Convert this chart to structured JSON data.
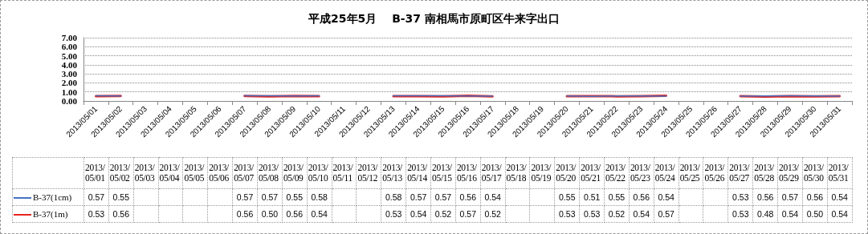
{
  "chart_data": {
    "type": "line",
    "title": "平成25年5月　 B-37 南相馬市原町区牛来字出口",
    "categories": [
      "2013/05/01",
      "2013/05/02",
      "2013/05/03",
      "2013/05/04",
      "2013/05/05",
      "2013/05/06",
      "2013/05/07",
      "2013/05/08",
      "2013/05/09",
      "2013/05/10",
      "2013/05/11",
      "2013/05/12",
      "2013/05/13",
      "2013/05/14",
      "2013/05/15",
      "2013/05/16",
      "2013/05/17",
      "2013/05/18",
      "2013/05/19",
      "2013/05/20",
      "2013/05/21",
      "2013/05/22",
      "2013/05/23",
      "2013/05/24",
      "2013/05/25",
      "2013/05/26",
      "2013/05/27",
      "2013/05/28",
      "2013/05/29",
      "2013/05/30",
      "2013/05/31"
    ],
    "series": [
      {
        "name": "B-37(1cm)",
        "color": "#4472c4",
        "values": [
          0.57,
          0.55,
          null,
          null,
          null,
          null,
          0.57,
          0.57,
          0.55,
          0.58,
          null,
          null,
          0.58,
          0.57,
          0.57,
          0.56,
          0.54,
          null,
          null,
          0.55,
          0.51,
          0.55,
          0.56,
          0.54,
          null,
          null,
          0.53,
          0.56,
          0.57,
          0.56,
          0.54
        ],
        "value_labels": [
          "0.57",
          "0.55",
          null,
          null,
          null,
          null,
          "0.57",
          "0.57",
          "0.55",
          "0.58",
          null,
          null,
          "0.58",
          "0.57",
          "0.57",
          "0.56",
          "0.54",
          null,
          null,
          "0.55",
          "0.51",
          "0.55",
          "0.56",
          "0.54",
          null,
          null,
          "0.53",
          "0.56",
          "0.57",
          "0.56",
          "0.54"
        ]
      },
      {
        "name": "B-37(1m)",
        "color": "#e8231f",
        "values": [
          0.53,
          0.56,
          null,
          null,
          null,
          null,
          0.56,
          0.5,
          0.56,
          0.54,
          null,
          null,
          0.53,
          0.54,
          0.52,
          0.57,
          0.52,
          null,
          null,
          0.53,
          0.53,
          0.52,
          0.54,
          0.57,
          null,
          null,
          0.53,
          0.48,
          0.54,
          0.5,
          0.54
        ],
        "value_labels": [
          "0.53",
          "0.56",
          null,
          null,
          null,
          null,
          "0.56",
          "0.50",
          "0.56",
          "0.54",
          null,
          null,
          "0.53",
          "0.54",
          "0.52",
          "0.57",
          "0.52",
          null,
          null,
          "0.53",
          "0.53",
          "0.52",
          "0.54",
          "0.57",
          null,
          null,
          "0.53",
          "0.48",
          "0.54",
          "0.50",
          "0.54"
        ]
      }
    ],
    "ylim": [
      0,
      7
    ],
    "yticks": [
      {
        "value": 0,
        "label": "0.00"
      },
      {
        "value": 1,
        "label": "1.00"
      },
      {
        "value": 2,
        "label": "2.00"
      },
      {
        "value": 3,
        "label": "3.00"
      },
      {
        "value": 4,
        "label": "4.00"
      },
      {
        "value": 5,
        "label": "5.00"
      },
      {
        "value": 6,
        "label": "6.00"
      },
      {
        "value": 7,
        "label": "7.00"
      }
    ],
    "grid": "y",
    "legend": "bottom",
    "marker": "none",
    "line_style": "solid"
  }
}
